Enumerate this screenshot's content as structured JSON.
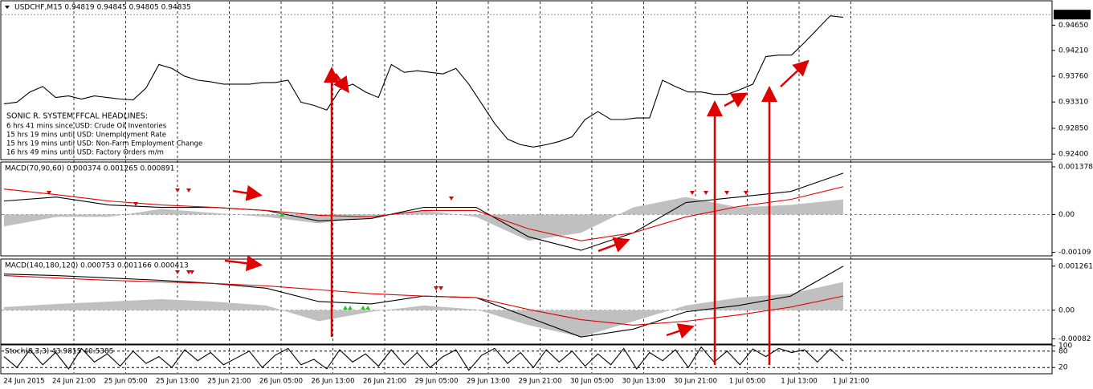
{
  "chart_data": [
    {
      "type": "line",
      "title": "USDCHF,M15  0.94819 0.94845 0.94805 0.94835",
      "series": [
        {
          "color": "#000000",
          "values": [
            0.93278,
            0.93306,
            0.93484,
            0.9358,
            0.93388,
            0.93416,
            0.93361,
            0.93416,
            0.93388,
            0.93361,
            0.93347,
            0.93553,
            0.93964,
            0.93896,
            0.93759,
            0.9369,
            0.93663,
            0.93621,
            0.93621,
            0.93621,
            0.93649,
            0.93649,
            0.9369,
            0.93306,
            0.93251,
            0.93169,
            0.93525,
            0.93621,
            0.93484,
            0.93388,
            0.93964,
            0.93827,
            0.93855,
            0.93827,
            0.938,
            0.93896,
            0.93621,
            0.93278,
            0.92935,
            0.92661,
            0.92565,
            0.92524,
            0.92565,
            0.9262,
            0.92702,
            0.93004,
            0.93141,
            0.93004,
            0.93004,
            0.93031,
            0.93031,
            0.9369,
            0.9358,
            0.93484,
            0.93484,
            0.93443,
            0.93443,
            0.93525,
            0.93621,
            0.94102,
            0.94129,
            0.94129,
            0.94348,
            0.94582,
            0.94815,
            0.94788
          ]
        }
      ],
      "ylim": [
        0.92318,
        0.95062
      ],
      "yticks": [
        {
          "value": 0.9465,
          "label": "0.94650"
        },
        {
          "value": 0.9421,
          "label": "0.94210"
        },
        {
          "value": 0.9376,
          "label": "0.93760"
        },
        {
          "value": 0.9331,
          "label": "0.93310"
        },
        {
          "value": 0.9285,
          "label": "0.92850"
        },
        {
          "value": 0.924,
          "label": "0.92400"
        }
      ],
      "last_price": 0.94835
    },
    {
      "type": "macd",
      "title": "MACD(70,90,60) 0.000374 0.001265 0.000891",
      "series": [
        {
          "color": "#c0c0c0",
          "style": "area",
          "values": [
            -0.000345,
            -6.9e-05,
            -6.9e-05,
            0.000161,
            4.6e-05,
            -6.9e-05,
            -0.000253,
            -6.9e-05,
            0.000115,
            -6.9e-05,
            -0.000758,
            -0.000528,
            0.000207,
            0.000505,
            0.000207,
            0.000276,
            0.000436
          ]
        },
        {
          "color": "#000000",
          "values": [
            0.00039,
            0.000505,
            0.000276,
            0.000207,
            0.000207,
            0.000115,
            -0.000184,
            -0.000115,
            0.000207,
            0.000207,
            -0.000643,
            -0.001034,
            -0.000528,
            0.000345,
            0.000505,
            0.000666,
            0.001194
          ]
        },
        {
          "color": "#e00000",
          "values": [
            0.000735,
            0.000574,
            0.00039,
            0.000276,
            0.000207,
            0.000115,
            -2.3e-05,
            -6.9e-05,
            0.000115,
            0.000115,
            -0.000413,
            -0.000758,
            -0.000528,
            -6.9e-05,
            0.00023,
            0.000436,
            0.000804
          ]
        }
      ],
      "ylim": [
        -0.001171,
        0.001493
      ],
      "yticks": [
        0.001378,
        {
          "value": 0,
          "label": "0.00"
        },
        -0.00109
      ]
    },
    {
      "type": "macd",
      "title": "MACD(140,180,120) 0.000753 0.001166 0.000413",
      "series": [
        {
          "color": "#c0c0c0",
          "style": "area",
          "values": [
            9e-05,
            0.00018,
            0.000248,
            0.000315,
            0.000248,
            0.000135,
            -0.000315,
            -4.5e-05,
            0.000135,
            2.3e-05,
            -0.000428,
            -0.000766,
            -0.000315,
            0.000135,
            0.00036,
            0.000473,
            0.000811
          ]
        },
        {
          "color": "#000000",
          "values": [
            0.001036,
            0.000991,
            0.000923,
            0.000856,
            0.000766,
            0.000631,
            0.000248,
            0.00018,
            0.000405,
            0.00036,
            -0.000203,
            -0.000766,
            -0.00054,
            -4.5e-05,
            0.000135,
            0.000405,
            0.001261
          ]
        },
        {
          "color": "#e00000",
          "values": [
            0.000991,
            0.000923,
            0.000856,
            0.000811,
            0.000766,
            0.000698,
            0.000586,
            0.000473,
            0.000405,
            0.00036,
            2.3e-05,
            -0.00027,
            -0.000428,
            -0.000315,
            -0.000135,
            9e-05,
            0.000405
          ]
        }
      ],
      "ylim": [
        -0.000946,
        0.001441
      ],
      "yticks": [
        0.001261,
        {
          "value": 0,
          "label": "0.00"
        },
        -0.00082
      ]
    },
    {
      "type": "line",
      "title": "Stoch(8,3,3) 43.9815 40.5385",
      "series": [
        {
          "color": "#000000",
          "values": [
            60,
            20,
            85,
            30,
            75,
            15,
            90,
            40,
            70,
            25,
            80,
            35,
            60,
            20,
            85,
            45,
            75,
            30,
            55,
            80,
            20,
            65,
            90,
            30,
            50,
            15,
            85,
            40,
            70,
            25,
            85,
            30,
            75,
            20,
            60,
            85,
            10,
            65,
            90,
            35,
            75,
            20,
            85,
            40,
            80,
            25,
            70,
            30,
            90,
            15,
            75,
            45,
            85,
            20,
            95,
            40,
            80,
            30,
            88,
            60,
            90,
            75,
            85,
            40,
            88,
            44
          ]
        }
      ],
      "ylim": [
        0,
        100
      ],
      "yticks": [
        100,
        80,
        20
      ]
    }
  ],
  "time_labels": [
    "24 Jun 2015",
    "24 Jun 21:00",
    "25 Jun 05:00",
    "25 Jun 13:00",
    "25 Jun 21:00",
    "26 Jun 05:00",
    "26 Jun 13:00",
    "26 Jun 21:00",
    "29 Jun 05:00",
    "29 Jun 13:00",
    "29 Jun 21:00",
    "30 Jun 05:00",
    "30 Jun 13:00",
    "30 Jun 21:00",
    "1 Jul 05:00",
    "1 Jul 13:00",
    "1 Jul 21:00"
  ],
  "headlines": {
    "title": "SONIC R. SYSTEM  FFCAL HEADLINES:",
    "items": [
      {
        "text": "6 hrs 41 mins since USD: Crude Oil Inventories",
        "color": "#000080"
      },
      {
        "text": "15 hrs 19 mins until USD: Unemployment Rate",
        "color": "#8b0000"
      },
      {
        "text": "15 hrs 19 mins until USD: Non-Farm Employment Change",
        "color": "#800080"
      },
      {
        "text": "16 hrs 49 mins until USD: Factory Orders m/m",
        "color": "#000080"
      }
    ]
  }
}
